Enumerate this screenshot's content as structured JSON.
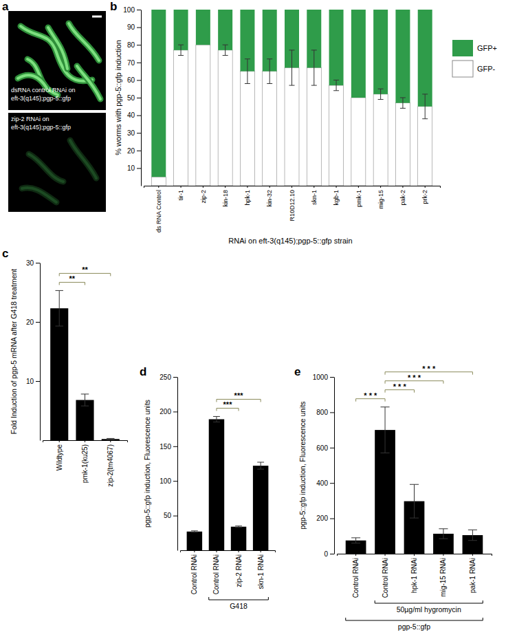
{
  "panel_a": {
    "label": "a",
    "images": [
      {
        "caption": [
          "dsRNA control RNAi on",
          "eft-3(q145);pgp-5::gfp"
        ]
      },
      {
        "caption": [
          "zip-2 RNAi on",
          "eft-3(q145);pgp-5::gfp"
        ]
      }
    ]
  },
  "chart_data": [
    {
      "panel_label": "b",
      "type": "bar",
      "stacked": true,
      "categories": [
        "ds RNA Control",
        "tir-1",
        "zip-2",
        "kin-18",
        "hpk-1",
        "kin-32",
        "R10D12.10",
        "skn-1",
        "kgb-1",
        "pmk-1",
        "mig-15",
        "pak-2",
        "prk-2"
      ],
      "series": [
        {
          "name": "GFP-",
          "color": "#ffffff",
          "values": [
            5,
            77,
            80,
            77,
            65,
            65,
            67,
            67,
            57,
            50,
            52,
            47,
            45
          ],
          "errors": [
            null,
            3,
            null,
            3,
            7,
            7,
            10,
            10,
            3,
            null,
            3,
            3,
            7
          ]
        },
        {
          "name": "GFP+",
          "color": "#2f9c4a",
          "values": [
            95,
            23,
            20,
            23,
            35,
            35,
            33,
            33,
            43,
            50,
            48,
            53,
            55
          ]
        }
      ],
      "ylabel": "% worms with pgp-5::gfp induction",
      "xlabel": "RNAi on eft-3(q145);pgp-5::gfp strain",
      "ylim": [
        0,
        100
      ],
      "yticks": [
        10,
        20,
        30,
        40,
        50,
        60,
        70,
        80,
        90,
        100
      ],
      "legend": "right"
    },
    {
      "panel_label": "c",
      "type": "bar",
      "categories": [
        "Wildtype",
        "pmk-1(ku25)",
        "zip-2(tm4067)"
      ],
      "values": [
        22.3,
        6.8,
        0.2
      ],
      "errors": [
        3,
        1,
        0.1
      ],
      "color": "#000000",
      "ylabel": "Fold Induction of pgp-5 mRNA after G418 treatment",
      "ylim": [
        0,
        30
      ],
      "yticks": [
        10,
        20,
        30
      ],
      "annotations": [
        {
          "text": "**",
          "from": 0,
          "to": 1
        },
        {
          "text": "**",
          "from": 0,
          "to": 2
        }
      ]
    },
    {
      "panel_label": "d",
      "type": "bar",
      "categories": [
        "Control RNAi",
        "Control RNAi",
        "zip-2 RNAi",
        "skn-1 RNAi"
      ],
      "values": [
        27,
        189,
        34,
        122
      ],
      "errors": [
        1,
        4,
        1,
        5
      ],
      "color": "#000000",
      "ylabel": "pgp-5::gfp induction, Fluorescence units",
      "ylim": [
        0,
        250
      ],
      "yticks": [
        50,
        100,
        150,
        200,
        250
      ],
      "annotations": [
        {
          "text": "***",
          "from": 1,
          "to": 2
        },
        {
          "text": "***",
          "from": 1,
          "to": 3
        }
      ],
      "groups": [
        {
          "label": "G418",
          "from": 1,
          "to": 3
        }
      ]
    },
    {
      "panel_label": "e",
      "type": "bar",
      "categories": [
        "Control RNAi",
        "Control RNAi",
        "hpk-1 RNAi",
        "mig-15 RNAi",
        "pak-1 RNAi"
      ],
      "values": [
        75,
        700,
        297,
        113,
        105
      ],
      "errors": [
        15,
        130,
        95,
        28,
        30
      ],
      "color": "#000000",
      "ylabel": "pgp-5::gfp induction, Fluorescence units",
      "ylim": [
        0,
        1000
      ],
      "yticks": [
        0,
        200,
        400,
        600,
        800,
        1000
      ],
      "annotations": [
        {
          "text": "* * *",
          "from": 0,
          "to": 1
        },
        {
          "text": "* * *",
          "from": 1,
          "to": 2
        },
        {
          "text": "* * *",
          "from": 1,
          "to": 3
        },
        {
          "text": "* * *",
          "from": 1,
          "to": 4
        }
      ],
      "groups": [
        {
          "label": "50µg/ml hygromycin",
          "from": 1,
          "to": 4
        },
        {
          "label": "pgp-5::gfp",
          "from": 0,
          "to": 4
        }
      ]
    }
  ]
}
